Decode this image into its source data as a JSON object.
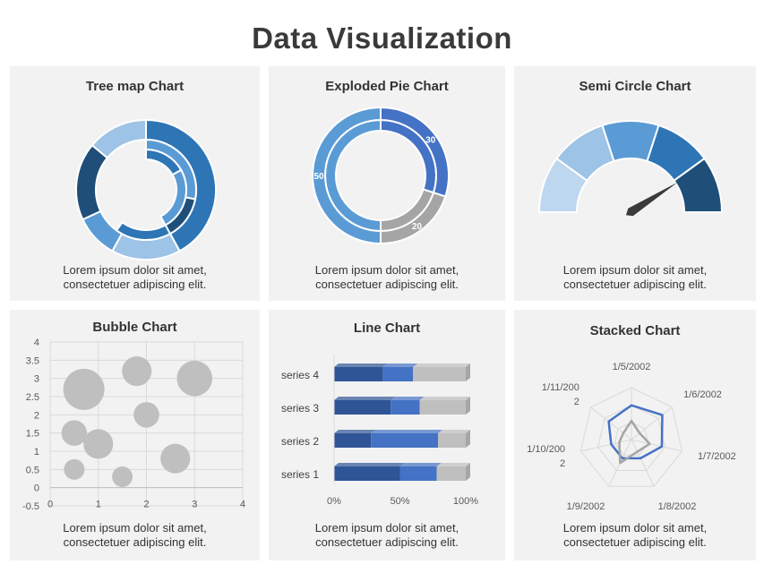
{
  "page": {
    "title": "Data Visualization"
  },
  "panels": [
    {
      "title": "Tree map Chart",
      "desc1": "Lorem ipsum dolor sit amet,",
      "desc2": "consectetuer adipiscing elit."
    },
    {
      "title": "Exploded Pie Chart",
      "desc1": "Lorem ipsum dolor sit amet,",
      "desc2": "consectetuer adipiscing elit."
    },
    {
      "title": "Semi Circle Chart",
      "desc1": "Lorem ipsum dolor sit amet,",
      "desc2": "consectetuer adipiscing elit."
    },
    {
      "title": "Bubble Chart",
      "desc1": "Lorem ipsum dolor sit amet,",
      "desc2": "consectetuer adipiscing elit."
    },
    {
      "title": "Line Chart",
      "desc1": "Lorem ipsum dolor sit amet,",
      "desc2": "consectetuer adipiscing elit."
    },
    {
      "title": "Stacked Chart",
      "desc1": "Lorem ipsum dolor sit amet,",
      "desc2": "consectetuer adipiscing elit."
    }
  ],
  "chart_data": [
    {
      "type": "sunburst",
      "title": "Tree map Chart",
      "rings": [
        {
          "values": [
            42,
            16,
            10,
            18,
            14
          ],
          "colors": [
            "#2e75b6",
            "#9dc3e6",
            "#5b9bd5",
            "#1f4e79",
            "#9dc3e6"
          ]
        },
        {
          "values": [
            28,
            14,
            18
          ],
          "colors": [
            "#5b9bd5",
            "#1f4e79",
            "#2e75b6"
          ],
          "start_fraction": 0.0,
          "span_fraction": 0.6
        },
        {
          "values": [
            12,
            18
          ],
          "colors": [
            "#2e75b6",
            "#5b9bd5"
          ],
          "start_fraction": 0.0,
          "span_fraction": 0.42
        }
      ]
    },
    {
      "type": "pie",
      "title": "Exploded Pie Chart",
      "inner": {
        "values": [
          30,
          20,
          50
        ],
        "colors": [
          "#4472c4",
          "#a5a5a5",
          "#5b9bd5"
        ]
      },
      "outer": {
        "values": [
          30,
          20,
          50
        ],
        "colors": [
          "#4472c4",
          "#a5a5a5",
          "#5b9bd5"
        ]
      },
      "labels": [
        "30",
        "20",
        "50"
      ]
    },
    {
      "type": "gauge",
      "title": "Semi Circle Chart",
      "segments": [
        1,
        1,
        1,
        1,
        1
      ],
      "colors": [
        "#bdd7ee",
        "#9dc3e6",
        "#5b9bd5",
        "#2e75b6",
        "#1f4e79"
      ],
      "needle_value": 0.82,
      "needle_color": "#3a3a3a"
    },
    {
      "type": "scatter",
      "title": "Bubble Chart",
      "xlim": [
        0,
        4
      ],
      "ylim": [
        -0.5,
        4
      ],
      "x_ticks": [
        "0",
        "1",
        "2",
        "3",
        "4"
      ],
      "y_ticks": [
        "-0.5",
        "0",
        "0.5",
        "1",
        "1.5",
        "2",
        "2.5",
        "3",
        "3.5",
        "4"
      ],
      "points": [
        {
          "x": 0.7,
          "y": 2.7,
          "size": 1.0
        },
        {
          "x": 1.8,
          "y": 3.2,
          "size": 0.72
        },
        {
          "x": 3.0,
          "y": 3.0,
          "size": 0.86
        },
        {
          "x": 2.0,
          "y": 2.0,
          "size": 0.62
        },
        {
          "x": 0.5,
          "y": 1.5,
          "size": 0.62
        },
        {
          "x": 1.0,
          "y": 1.2,
          "size": 0.72
        },
        {
          "x": 2.6,
          "y": 0.8,
          "size": 0.72
        },
        {
          "x": 0.5,
          "y": 0.5,
          "size": 0.5
        },
        {
          "x": 1.5,
          "y": 0.3,
          "size": 0.5
        }
      ],
      "color": "#bfbfbf"
    },
    {
      "type": "bar",
      "title": "Line Chart",
      "orientation": "horizontal-stacked-100",
      "categories": [
        "series 4",
        "series 3",
        "series 2",
        "series 1"
      ],
      "series": [
        {
          "values": [
            37,
            43,
            28,
            50
          ],
          "color": "#2f5597"
        },
        {
          "values": [
            23,
            22,
            51,
            28
          ],
          "color": "#4472c4"
        },
        {
          "values": [
            40,
            35,
            21,
            22
          ],
          "color": "#bfbfbf"
        }
      ],
      "x_ticks": [
        "0%",
        "50%",
        "100%"
      ]
    },
    {
      "type": "radar",
      "title": "Stacked Chart",
      "axes": [
        "1/5/2002",
        "1/6/2002",
        "1/7/2002",
        "1/8/2002",
        "1/9/2002",
        "1/10/2002",
        "1/11/2002"
      ],
      "axis_labels": [
        [
          "1/5/2002"
        ],
        [
          "1/6/2002"
        ],
        [
          "1/7/2002"
        ],
        [
          "1/8/2002"
        ],
        [
          "1/9/2002"
        ],
        [
          "1/10/200",
          "2"
        ],
        [
          "1/11/200",
          "2"
        ]
      ],
      "max": 50,
      "series": [
        {
          "values": [
            33,
            38,
            30,
            20,
            20,
            20,
            28
          ],
          "color": "#4472c4"
        },
        {
          "values": [
            18,
            10,
            18,
            13,
            25,
            12,
            10
          ],
          "color": "#a5a5a5"
        }
      ],
      "grid_color": "#d9d9d9"
    }
  ]
}
